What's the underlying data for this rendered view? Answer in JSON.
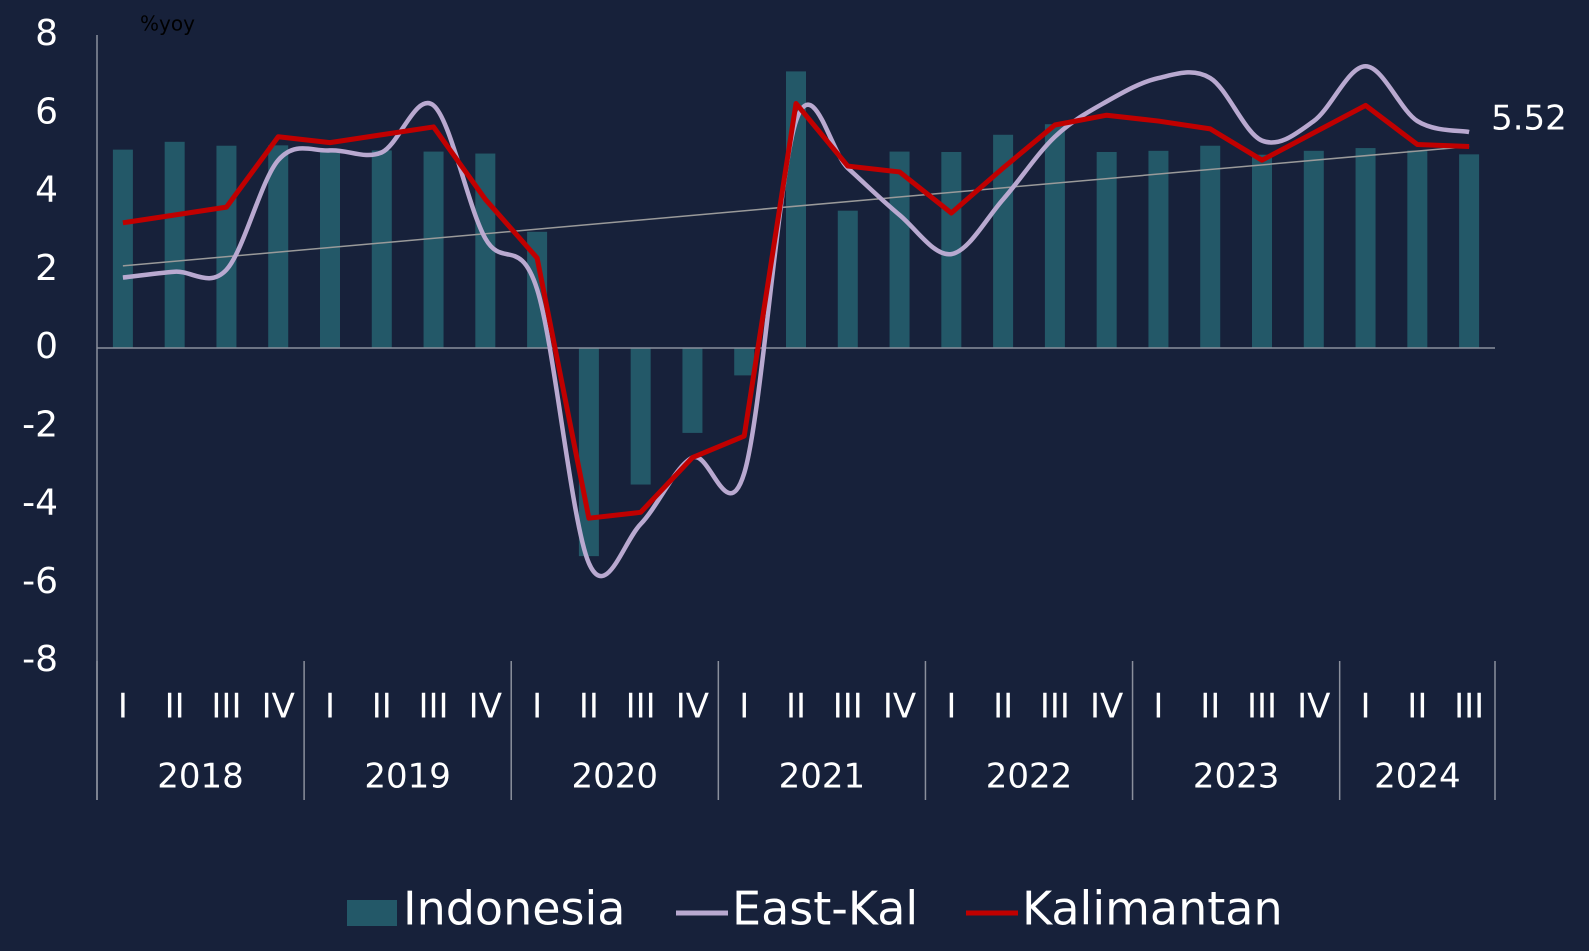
{
  "chart_data": {
    "type": "bar_line",
    "y_axis_label": "%yoy",
    "categories": [
      "I",
      "II",
      "III",
      "IV",
      "I",
      "II",
      "III",
      "IV",
      "I",
      "II",
      "III",
      "IV",
      "I",
      "II",
      "III",
      "IV",
      "I",
      "II",
      "III",
      "IV",
      "I",
      "II",
      "III",
      "IV",
      "I",
      "II",
      "III"
    ],
    "groups": [
      {
        "label": "2018",
        "count": 4
      },
      {
        "label": "2019",
        "count": 4
      },
      {
        "label": "2020",
        "count": 4
      },
      {
        "label": "2021",
        "count": 4
      },
      {
        "label": "2022",
        "count": 4
      },
      {
        "label": "2023",
        "count": 4
      },
      {
        "label": "2024",
        "count": 3
      }
    ],
    "series": [
      {
        "name": "Indonesia",
        "type": "bar",
        "color": "#235868",
        "values": [
          5.07,
          5.27,
          5.17,
          5.18,
          5.07,
          5.05,
          5.02,
          4.97,
          2.97,
          -5.32,
          -3.49,
          -2.17,
          -0.7,
          7.07,
          3.51,
          5.02,
          5.01,
          5.45,
          5.72,
          5.01,
          5.04,
          5.17,
          4.94,
          5.04,
          5.11,
          5.05,
          4.95
        ]
      },
      {
        "name": "East-Kal",
        "type": "smooth",
        "color": "#b9a9d0",
        "values": [
          1.8,
          1.95,
          2.0,
          4.8,
          5.05,
          5.0,
          6.2,
          2.8,
          1.5,
          -5.5,
          -4.5,
          -2.8,
          -3.2,
          5.8,
          4.6,
          3.4,
          2.4,
          3.8,
          5.4,
          6.3,
          6.9,
          6.9,
          5.3,
          5.8,
          7.2,
          5.8,
          5.52
        ],
        "value_labels": [
          null,
          null,
          null,
          null,
          null,
          null,
          null,
          null,
          null,
          null,
          null,
          null,
          null,
          null,
          null,
          null,
          null,
          null,
          null,
          null,
          null,
          null,
          null,
          null,
          null,
          null,
          "5.52"
        ]
      },
      {
        "name": "Kalimantan",
        "type": "line",
        "color": "#c00000",
        "values": [
          3.2,
          3.4,
          3.6,
          5.4,
          5.25,
          5.45,
          5.65,
          3.8,
          2.3,
          -4.35,
          -4.2,
          -2.8,
          -2.25,
          6.25,
          4.65,
          4.5,
          3.45,
          4.6,
          5.7,
          5.95,
          5.8,
          5.6,
          4.8,
          5.5,
          6.2,
          5.2,
          5.15
        ]
      }
    ],
    "trend": {
      "color": "#9a9a9a",
      "start": 2.1,
      "end": 5.15
    },
    "ylim": [
      -8,
      8
    ],
    "yticks": [
      -8,
      -6,
      -4,
      -2,
      0,
      2,
      4,
      6,
      8
    ],
    "grid": false,
    "legend": "bottom"
  }
}
